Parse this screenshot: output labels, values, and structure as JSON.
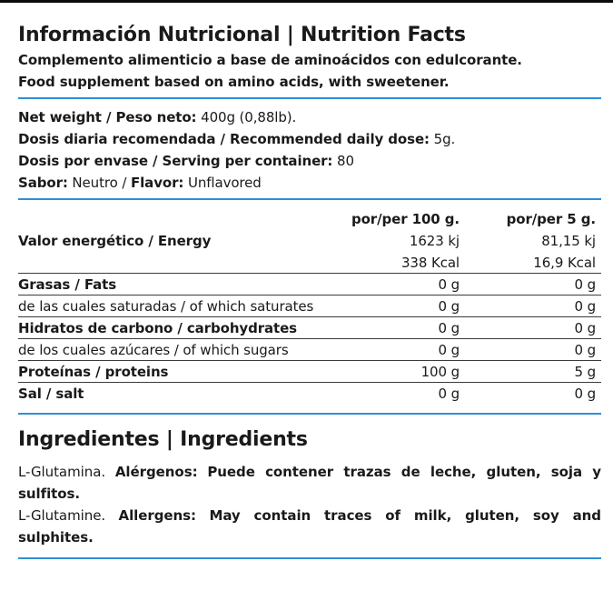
{
  "header": {
    "title": "Información Nutricional | Nutrition Facts",
    "line_es": "Complemento alimenticio a base de aminoácidos con edulcorante.",
    "line_en": "Food supplement based on amino acids, with sweetener."
  },
  "info": {
    "weight_label": "Net weight / Peso neto:",
    "weight_value": " 400g (0,88lb).",
    "dose_label": "Dosis diaria recomendada / Recommended daily dose:",
    "dose_value": " 5g.",
    "servings_label": "Dosis por envase / Serving per container:",
    "servings_value": " 80",
    "flavor_label_es": "Sabor:",
    "flavor_value_es": " Neutro / ",
    "flavor_label_en": "Flavor:",
    "flavor_value_en": " Unflavored"
  },
  "table": {
    "col1_header": "por/per 100 g.",
    "col2_header": "por/per 5 g.",
    "rows": [
      {
        "label": "Valor energético / Energy",
        "v100": "1623 kj",
        "v5": "81,15 kj"
      },
      {
        "label": "",
        "v100": "338 Kcal",
        "v5": "16,9 Kcal"
      },
      {
        "label": "Grasas / Fats",
        "v100": "0 g",
        "v5": "0 g"
      },
      {
        "label": "de las cuales saturadas / of which saturates",
        "v100": "0 g",
        "v5": "0 g"
      },
      {
        "label": "Hidratos de carbono / carbohydrates",
        "v100": "0 g",
        "v5": "0 g"
      },
      {
        "label": "de los cuales azúcares / of which sugars",
        "v100": "0 g",
        "v5": "0 g"
      },
      {
        "label": "Proteínas / proteins",
        "v100": "100 g",
        "v5": "5 g"
      },
      {
        "label": "Sal / salt",
        "v100": "0 g",
        "v5": "0 g"
      }
    ]
  },
  "ingredients": {
    "title": "Ingredientes | Ingredients",
    "es_ingredient": "L-Glutamina.",
    "es_allergen_label": "Alérgenos:",
    "es_allergen_text": "Puede contener trazas de leche, gluten, soja y sulfitos.",
    "en_ingredient": "L-Glutamine.",
    "en_allergen_label": "Allergens:",
    "en_allergen_text": "May contain traces of milk, gluten, soy and sulphites."
  },
  "colors": {
    "accent": "#2e8fd6",
    "text": "#1a1a1a",
    "top_bar": "#0b0b0b"
  }
}
